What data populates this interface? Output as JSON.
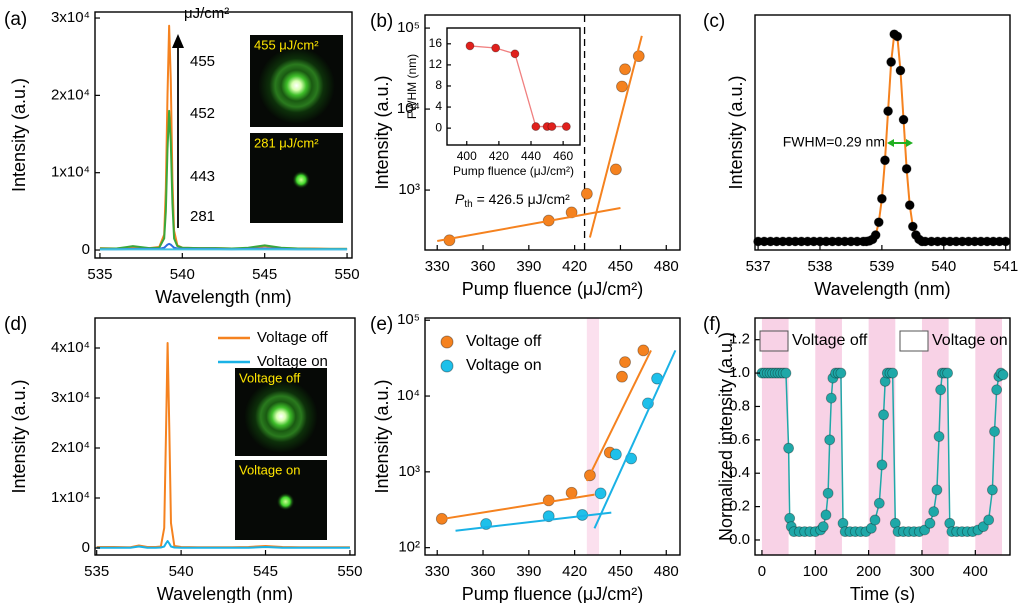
{
  "chart_data": [
    {
      "type": "line",
      "panel_label": "(a)",
      "x_label": "Wavelength (nm)",
      "y_label": "Intensity (a.u.)",
      "xlim": [
        534.7,
        550.3
      ],
      "xticks": [
        535,
        540,
        545,
        550
      ],
      "ylim": [
        -1030,
        30780
      ],
      "yticks": [
        0,
        {
          "value": 10000,
          "label": "1x10⁴"
        },
        {
          "value": 20000,
          "label": "2x10⁴"
        },
        {
          "value": 30000,
          "label": "3x10⁴"
        }
      ],
      "fluence_unit": "μJ/cm²",
      "x": [
        535,
        536,
        537,
        538,
        538.6,
        538.9,
        539.0,
        539.1,
        539.2,
        539.3,
        539.4,
        539.5,
        539.7,
        540,
        541,
        542,
        543,
        544,
        545,
        546,
        547,
        548,
        549,
        550
      ],
      "series": [
        {
          "name": "455",
          "color": "#f5821f",
          "values": [
            250,
            200,
            300,
            250,
            400,
            2000,
            8000,
            20000,
            29000,
            22000,
            9000,
            2500,
            600,
            300,
            250,
            250,
            200,
            200,
            500,
            250,
            200,
            200,
            150,
            150
          ]
        },
        {
          "name": "452",
          "color": "#3aa83a",
          "values": [
            200,
            200,
            500,
            250,
            300,
            1500,
            5000,
            13000,
            18000,
            14000,
            6000,
            1500,
            500,
            300,
            250,
            250,
            200,
            300,
            600,
            300,
            200,
            150,
            150,
            150
          ]
        },
        {
          "name": "443",
          "color": "#2d6cdf",
          "values": [
            100,
            100,
            150,
            150,
            150,
            300,
            500,
            700,
            800,
            700,
            500,
            300,
            200,
            150,
            150,
            150,
            100,
            150,
            200,
            150,
            100,
            100,
            100,
            100
          ]
        },
        {
          "name": "281",
          "color": "#40c0e0",
          "values": [
            80,
            80,
            80,
            80,
            80,
            80,
            80,
            80,
            80,
            80,
            80,
            80,
            80,
            80,
            80,
            80,
            80,
            80,
            80,
            80,
            80,
            80,
            80,
            80
          ]
        }
      ],
      "images": [
        {
          "label": "455 μJ/cm²"
        },
        {
          "label": "281 μJ/cm²"
        }
      ]
    },
    {
      "type": "scatter",
      "panel_label": "(b)",
      "x_label": "Pump fluence (μJ/cm²)",
      "y_label": "Intensity (a.u.)",
      "xlim": [
        322,
        489
      ],
      "xticks": [
        330,
        360,
        390,
        420,
        450,
        480
      ],
      "ylog": true,
      "ylim": [
        182,
        145000
      ],
      "yticks": [
        {
          "value": 1000,
          "label": "10³"
        },
        {
          "value": 10000,
          "label": "10⁴"
        },
        {
          "value": 100000,
          "label": "10⁵"
        }
      ],
      "threshold": 426.5,
      "threshold_label": {
        "symbol": "P",
        "subscript": "th",
        "text": " = 426.5 μJ/cm²"
      },
      "series": [
        {
          "color": "#f5821f",
          "mode": "markers",
          "x": [
            338,
            403,
            418,
            428,
            447,
            451,
            453,
            462
          ],
          "values": [
            240,
            420,
            530,
            900,
            1800,
            19000,
            31000,
            45000
          ]
        },
        {
          "color": "#f5821f",
          "mode": "line",
          "x": [
            330,
            450
          ],
          "values": [
            235,
            600
          ]
        },
        {
          "color": "#f5821f",
          "mode": "line",
          "x": [
            430,
            464
          ],
          "values": [
            260,
            80000
          ]
        }
      ],
      "inset": {
        "type": "scatter",
        "x_label": "Pump fluence (μJ/cm²)",
        "y_label": "FWHM (nm)",
        "xlim": [
          387.7,
          470.5
        ],
        "xticks": [
          400,
          420,
          440,
          460
        ],
        "ylim": [
          -3.2,
          19
        ],
        "yticks": [
          0,
          4,
          8,
          12,
          16
        ],
        "series": [
          {
            "color": "#e0201c",
            "line_color": "#f08080",
            "mode": "markers+line",
            "x": [
              402,
              418,
              430,
              443,
              450,
              453,
              462
            ],
            "values": [
              15.6,
              15.2,
              14.1,
              0.3,
              0.3,
              0.3,
              0.3
            ]
          }
        ]
      }
    },
    {
      "type": "scatter",
      "panel_label": "(c)",
      "x_label": "Wavelength (nm)",
      "y_label": "Intensity (a.u.)",
      "xlim": [
        536.95,
        541.07
      ],
      "xticks": [
        537,
        538,
        539,
        540,
        541
      ],
      "ylim": [
        -0.02,
        1.08
      ],
      "fwhm_label": "FWHM=0.29 nm",
      "series": [
        {
          "color": "#000000",
          "line_color": "#f5821f",
          "mode": "markers+line",
          "x": [
            537,
            537.1,
            537.2,
            537.3,
            537.4,
            537.5,
            537.6,
            537.7,
            537.8,
            537.9,
            538,
            538.1,
            538.2,
            538.3,
            538.4,
            538.5,
            538.6,
            538.7,
            538.75,
            538.8,
            538.85,
            538.9,
            538.95,
            539,
            539.05,
            539.1,
            539.15,
            539.2,
            539.25,
            539.3,
            539.35,
            539.4,
            539.45,
            539.5,
            539.55,
            539.6,
            539.65,
            539.7,
            539.8,
            539.9,
            540,
            540.1,
            540.2,
            540.3,
            540.4,
            540.5,
            540.6,
            540.7,
            540.8,
            540.9,
            541
          ],
          "values": [
            0.02,
            0.02,
            0.02,
            0.02,
            0.02,
            0.02,
            0.02,
            0.02,
            0.02,
            0.02,
            0.02,
            0.02,
            0.02,
            0.02,
            0.02,
            0.02,
            0.02,
            0.02,
            0.02,
            0.023,
            0.03,
            0.05,
            0.11,
            0.22,
            0.4,
            0.63,
            0.86,
            0.99,
            0.98,
            0.82,
            0.59,
            0.36,
            0.19,
            0.09,
            0.05,
            0.03,
            0.02,
            0.02,
            0.02,
            0.02,
            0.02,
            0.02,
            0.02,
            0.02,
            0.02,
            0.02,
            0.02,
            0.02,
            0.02,
            0.02,
            0.02
          ]
        }
      ]
    },
    {
      "type": "line",
      "panel_label": "(d)",
      "x_label": "Wavelength (nm)",
      "y_label": "Intensity (a.u.)",
      "xlim": [
        534.9,
        550.3
      ],
      "xticks": [
        535,
        540,
        545,
        550
      ],
      "ylim": [
        -1400,
        46000
      ],
      "yticks": [
        0,
        {
          "value": 10000,
          "label": "1x10⁴"
        },
        {
          "value": 20000,
          "label": "2x10⁴"
        },
        {
          "value": 30000,
          "label": "3x10⁴"
        },
        {
          "value": 40000,
          "label": "4x10⁴"
        }
      ],
      "legend": "upper right",
      "x": [
        535,
        536,
        537,
        537.5,
        538,
        538.5,
        538.8,
        539.0,
        539.1,
        539.2,
        539.3,
        539.4,
        539.6,
        540,
        541,
        542,
        543,
        544,
        545,
        546,
        547,
        548,
        549,
        550
      ],
      "series": [
        {
          "name": "Voltage off",
          "color": "#f5821f",
          "values": [
            200,
            200,
            150,
            500,
            200,
            200,
            300,
            4000,
            22000,
            41000,
            24000,
            5000,
            400,
            200,
            150,
            150,
            150,
            200,
            400,
            200,
            150,
            150,
            150,
            150
          ]
        },
        {
          "name": "Voltage on",
          "color": "#1ab2e6",
          "values": [
            50,
            50,
            50,
            300,
            50,
            50,
            100,
            300,
            900,
            1400,
            900,
            300,
            100,
            50,
            50,
            50,
            50,
            50,
            200,
            50,
            50,
            50,
            50,
            50
          ]
        }
      ],
      "images": [
        {
          "label": "Voltage off"
        },
        {
          "label": "Voltage on"
        }
      ]
    },
    {
      "type": "scatter",
      "panel_label": "(e)",
      "x_label": "Pump fluence (μJ/cm²)",
      "y_label": "Intensity (a.u.)",
      "xlim": [
        322,
        489
      ],
      "xticks": [
        330,
        360,
        390,
        420,
        450,
        480
      ],
      "ylog": true,
      "ylim": [
        80,
        107000
      ],
      "yticks": [
        {
          "value": 100,
          "label": "10²"
        },
        {
          "value": 1000,
          "label": "10³"
        },
        {
          "value": 10000,
          "label": "10⁴"
        },
        {
          "value": 100000,
          "label": "10⁵"
        }
      ],
      "legend": "upper left",
      "bands": [
        [
          428,
          436
        ]
      ],
      "band_color": "#fbe0ee",
      "series": [
        {
          "name": "Voltage off",
          "color": "#f5821f",
          "mode": "markers",
          "x": [
            333,
            403,
            418,
            430,
            443,
            451,
            453,
            465
          ],
          "values": [
            240,
            420,
            530,
            900,
            1800,
            18000,
            28000,
            40000
          ]
        },
        {
          "name": "Voltage on",
          "color": "#1ec0ea",
          "mode": "markers",
          "x": [
            362,
            403,
            425,
            437,
            447,
            457,
            468,
            474
          ],
          "values": [
            205,
            260,
            270,
            520,
            1700,
            1500,
            8000,
            17000
          ]
        },
        {
          "color": "#f5821f",
          "mode": "line",
          "x": [
            330,
            433
          ],
          "values": [
            233,
            500
          ]
        },
        {
          "color": "#f5821f",
          "mode": "line",
          "x": [
            428,
            470
          ],
          "values": [
            760,
            40000
          ]
        },
        {
          "color": "#1ab2e6",
          "mode": "line",
          "x": [
            342,
            444
          ],
          "values": [
            167,
            290
          ]
        },
        {
          "color": "#1ab2e6",
          "mode": "line",
          "x": [
            433,
            486
          ],
          "values": [
            180,
            40000
          ]
        }
      ]
    },
    {
      "type": "scatter",
      "panel_label": "(f)",
      "x_label": "Time (s)",
      "y_label": "Normalized intensity (a.u.)",
      "xlim": [
        -13,
        465
      ],
      "xticks": [
        0,
        100,
        200,
        300,
        400
      ],
      "ylim": [
        -0.09,
        1.33
      ],
      "yticks": [
        {
          "value": 0,
          "label": "0.0"
        },
        0.2,
        0.4,
        0.6,
        0.8,
        {
          "value": 1,
          "label": "1.0"
        },
        1.2
      ],
      "bands": [
        [
          0,
          50
        ],
        [
          100,
          150
        ],
        [
          200,
          250
        ],
        [
          300,
          350
        ],
        [
          400,
          450
        ]
      ],
      "band_color": "#f8d2e6",
      "band_label": "Voltage off",
      "background_label": "Voltage on",
      "background_color": "#ffffff",
      "series": [
        {
          "color": "#1fa8a8",
          "mode": "markers+line",
          "x": [
            0,
            5,
            10,
            15,
            20,
            25,
            30,
            35,
            40,
            45,
            50,
            52,
            55,
            60,
            70,
            80,
            90,
            100,
            110,
            115,
            120,
            124,
            127,
            130,
            133,
            138,
            143,
            148,
            152,
            156,
            165,
            175,
            185,
            195,
            205,
            212,
            220,
            225,
            228,
            231,
            235,
            240,
            245,
            250,
            255,
            265,
            275,
            285,
            295,
            305,
            315,
            322,
            328,
            332,
            335,
            338,
            343,
            348,
            352,
            356,
            365,
            375,
            385,
            395,
            405,
            415,
            425,
            432,
            436,
            440,
            444,
            448,
            452
          ],
          "values": [
            1,
            1,
            1,
            1,
            1,
            1,
            1,
            1,
            1,
            1,
            0.55,
            0.13,
            0.08,
            0.05,
            0.05,
            0.05,
            0.05,
            0.05,
            0.06,
            0.08,
            0.15,
            0.28,
            0.6,
            0.85,
            0.97,
            1,
            1,
            1,
            0.1,
            0.05,
            0.05,
            0.05,
            0.05,
            0.05,
            0.07,
            0.12,
            0.22,
            0.45,
            0.75,
            0.95,
            1,
            1,
            1,
            0.1,
            0.05,
            0.05,
            0.05,
            0.05,
            0.05,
            0.06,
            0.1,
            0.17,
            0.3,
            0.62,
            0.9,
            1,
            1,
            1,
            0.1,
            0.05,
            0.05,
            0.05,
            0.05,
            0.05,
            0.06,
            0.08,
            0.12,
            0.3,
            0.65,
            0.9,
            0.98,
            1,
            0.99
          ]
        }
      ]
    }
  ]
}
